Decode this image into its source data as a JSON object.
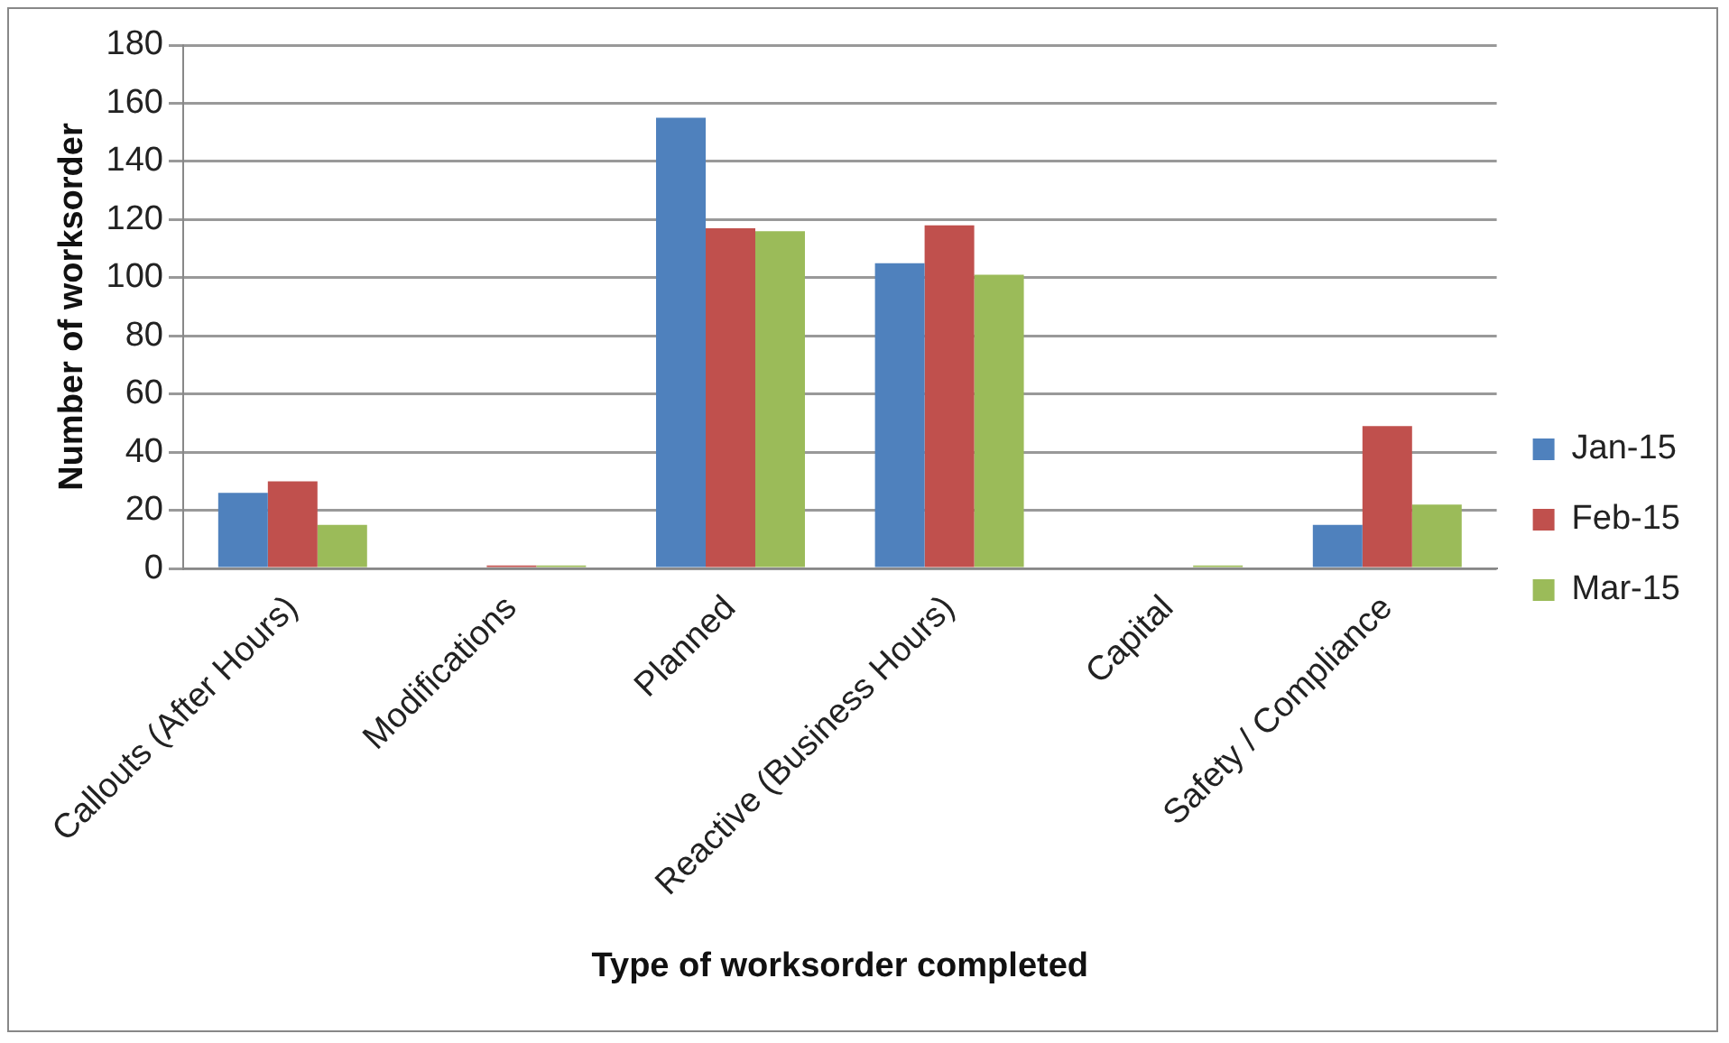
{
  "chart_data": {
    "type": "bar",
    "xlabel": "Type of worksorder completed",
    "ylabel": "Number of worksorder",
    "categories": [
      "Callouts (After Hours)",
      "Modifications",
      "Planned",
      "Reactive (Business Hours)",
      "Capital",
      "Safety / Compliance"
    ],
    "series": [
      {
        "name": "Jan-15",
        "color": "#4f81bd",
        "values": [
          26,
          0,
          155,
          105,
          0,
          15
        ]
      },
      {
        "name": "Feb-15",
        "color": "#c0504d",
        "values": [
          30,
          1,
          117,
          118,
          0,
          49
        ]
      },
      {
        "name": "Mar-15",
        "color": "#9bbb59",
        "values": [
          15,
          1,
          116,
          101,
          1,
          22
        ]
      }
    ],
    "ylim": [
      0,
      180
    ],
    "yticks": [
      0,
      20,
      40,
      60,
      80,
      100,
      120,
      140,
      160,
      180
    ],
    "grid": "y",
    "legend": "right"
  }
}
